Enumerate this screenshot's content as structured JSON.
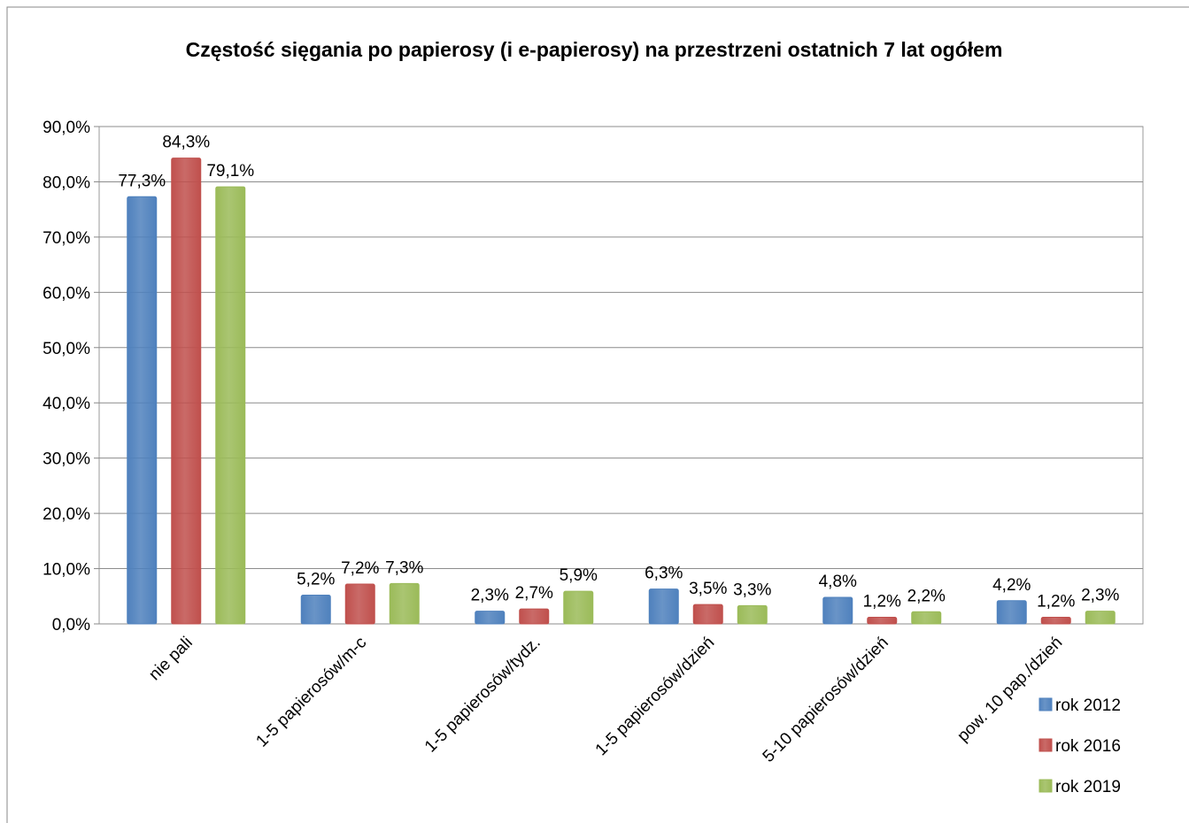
{
  "chart_data": {
    "type": "bar",
    "title": "Częstość sięgania po papierosy (i e-papierosy) na przestrzeni ostatnich 7 lat ogółem",
    "categories": [
      "nie pali",
      "1-5 papierosów/m-c",
      "1-5 papierosów/tydz.",
      "1-5 papierosów/dzień",
      "5-10 papierosów/dzień",
      "pow. 10 pap./dzień"
    ],
    "series": [
      {
        "name": "rok 2012",
        "color": "#4f81bd",
        "values": [
          77.3,
          5.2,
          2.3,
          6.3,
          4.8,
          4.2
        ],
        "value_labels": [
          "77,3%",
          "5,2%",
          "2,3%",
          "6,3%",
          "4,8%",
          "4,2%"
        ]
      },
      {
        "name": "rok 2016",
        "color": "#c0504d",
        "values": [
          84.3,
          7.2,
          2.7,
          3.5,
          1.2,
          1.2
        ],
        "value_labels": [
          "84,3%",
          "7,2%",
          "2,7%",
          "3,5%",
          "1,2%",
          "1,2%"
        ]
      },
      {
        "name": "rok 2019",
        "color": "#9bbb59",
        "values": [
          79.1,
          7.3,
          5.9,
          3.3,
          2.2,
          2.3
        ],
        "value_labels": [
          "79,1%",
          "7,3%",
          "5,9%",
          "3,3%",
          "2,2%",
          "2,3%"
        ]
      }
    ],
    "ylim": [
      0,
      90
    ],
    "yticks": [
      {
        "value": 0,
        "label": "0,0%"
      },
      {
        "value": 10,
        "label": "10,0%"
      },
      {
        "value": 20,
        "label": "20,0%"
      },
      {
        "value": 30,
        "label": "30,0%"
      },
      {
        "value": 40,
        "label": "40,0%"
      },
      {
        "value": 50,
        "label": "50,0%"
      },
      {
        "value": 60,
        "label": "60,0%"
      },
      {
        "value": 70,
        "label": "70,0%"
      },
      {
        "value": 80,
        "label": "80,0%"
      },
      {
        "value": 90,
        "label": "90,0%"
      }
    ],
    "grid": true,
    "legend": "right"
  }
}
